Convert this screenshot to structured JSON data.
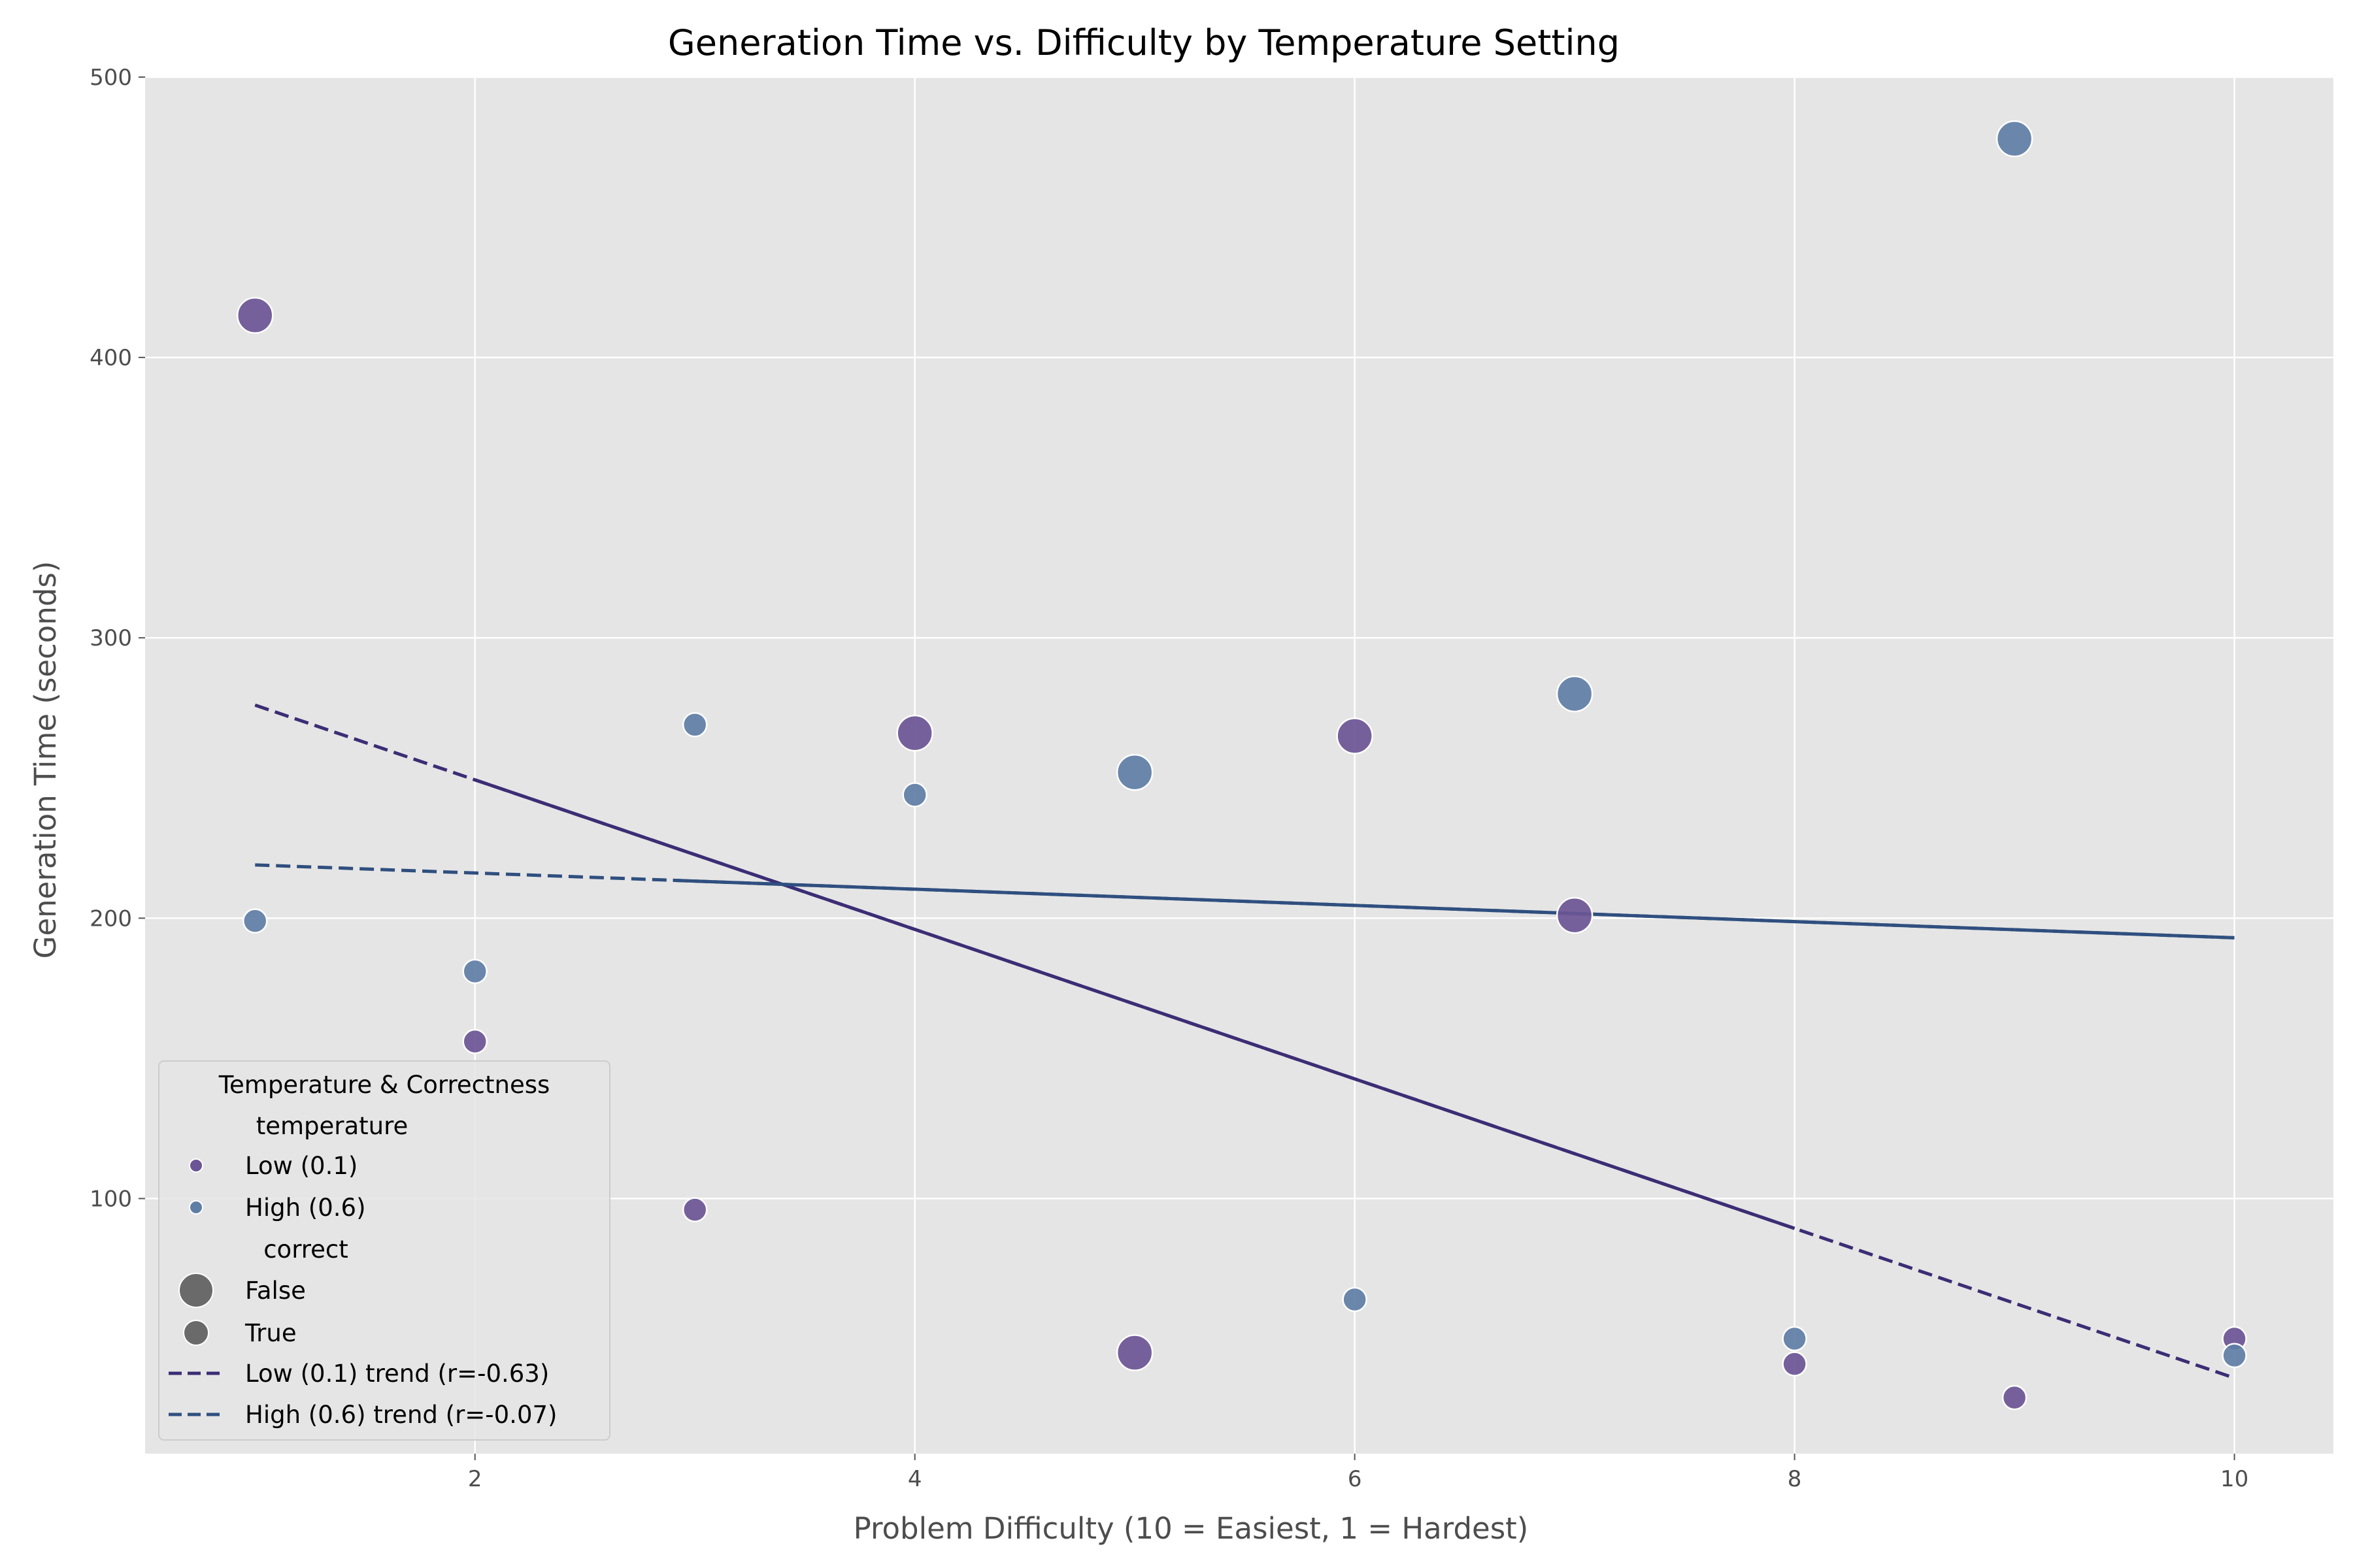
{
  "chart_data": {
    "type": "scatter",
    "title": "Generation Time vs. Difficulty by Temperature Setting",
    "xlabel": "Problem Difficulty (10 = Easiest, 1 = Hardest)",
    "ylabel": "Generation Time (seconds)",
    "xlim": [
      0.5,
      10.45
    ],
    "ylim": [
      9,
      500
    ],
    "x_ticks": [
      2,
      4,
      6,
      8,
      10
    ],
    "y_ticks": [
      100,
      200,
      300,
      400,
      500
    ],
    "grid": true,
    "legend_position": "lower-left",
    "legend": {
      "title": "Temperature & Correctness",
      "hue_title": "temperature",
      "size_title": "correct",
      "entries": {
        "low": "Low (0.1)",
        "high": "High (0.6)",
        "false": "False",
        "true": "True",
        "low_trend": "Low (0.1) trend (r=-0.63)",
        "high_trend": "High (0.6) trend (r=-0.07)"
      }
    },
    "colors": {
      "low": "#6b5595",
      "high": "#5f7ea6",
      "low_trend": "#3c2d75",
      "high_trend": "#2f4f7f",
      "plot_background": "#e5e5e5",
      "grid": "#ffffff"
    },
    "series": [
      {
        "name": "Low (0.1)",
        "color_key": "low",
        "points": [
          {
            "x": 1,
            "y": 415,
            "correct": false
          },
          {
            "x": 2,
            "y": 156,
            "correct": true
          },
          {
            "x": 3,
            "y": 96,
            "correct": true
          },
          {
            "x": 4,
            "y": 266,
            "correct": false
          },
          {
            "x": 5,
            "y": 45,
            "correct": false
          },
          {
            "x": 6,
            "y": 265,
            "correct": false
          },
          {
            "x": 7,
            "y": 201,
            "correct": false
          },
          {
            "x": 8,
            "y": 41,
            "correct": true
          },
          {
            "x": 9,
            "y": 29,
            "correct": true
          },
          {
            "x": 10,
            "y": 50,
            "correct": true
          }
        ]
      },
      {
        "name": "High (0.6)",
        "color_key": "high",
        "points": [
          {
            "x": 1,
            "y": 199,
            "correct": true
          },
          {
            "x": 2,
            "y": 181,
            "correct": true
          },
          {
            "x": 3,
            "y": 269,
            "correct": true
          },
          {
            "x": 4,
            "y": 244,
            "correct": true
          },
          {
            "x": 5,
            "y": 252,
            "correct": false
          },
          {
            "x": 6,
            "y": 64,
            "correct": true
          },
          {
            "x": 7,
            "y": 280,
            "correct": false
          },
          {
            "x": 8,
            "y": 50,
            "correct": true
          },
          {
            "x": 9,
            "y": 478,
            "correct": false
          },
          {
            "x": 10,
            "y": 44,
            "correct": true
          }
        ]
      }
    ],
    "trends": [
      {
        "name": "Low (0.1) trend (r=-0.63)",
        "color_key": "low_trend",
        "x": [
          1,
          10
        ],
        "y": [
          276,
          36
        ],
        "solid_from_x": 2,
        "solid_to_x": 8
      },
      {
        "name": "High (0.6) trend (r=-0.07)",
        "color_key": "high_trend",
        "x": [
          1,
          10
        ],
        "y": [
          219,
          193
        ],
        "solid_from_x": 2.9,
        "solid_to_x": 10
      }
    ]
  }
}
